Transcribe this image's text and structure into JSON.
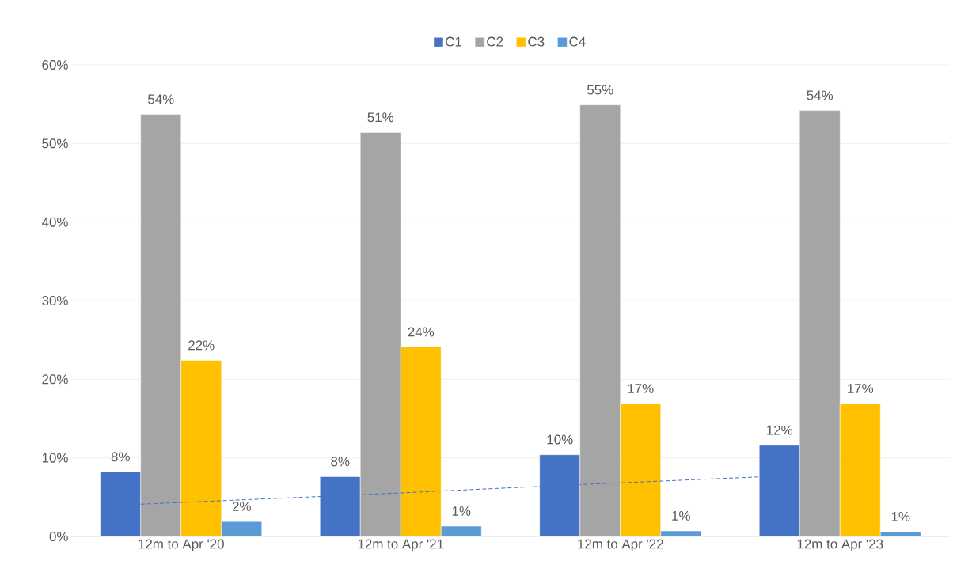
{
  "chart_data": {
    "type": "bar",
    "categories": [
      "12m to Apr '20",
      "12m to Apr '21",
      "12m to Apr '22",
      "12m to Apr '23"
    ],
    "series": [
      {
        "name": "C1",
        "color": "#4472c4",
        "values": [
          8.2,
          7.6,
          10.4,
          11.6
        ],
        "value_labels": [
          "8%",
          "8%",
          "10%",
          "12%"
        ]
      },
      {
        "name": "C2",
        "color": "#a5a5a5",
        "values": [
          53.7,
          51.4,
          54.9,
          54.2
        ],
        "value_labels": [
          "54%",
          "51%",
          "55%",
          "54%"
        ]
      },
      {
        "name": "C3",
        "color": "#ffc000",
        "values": [
          22.4,
          24.1,
          16.9,
          16.9
        ],
        "value_labels": [
          "22%",
          "24%",
          "17%",
          "17%"
        ]
      },
      {
        "name": "C4",
        "color": "#5b9bd5",
        "values": [
          1.9,
          1.3,
          0.7,
          0.6
        ],
        "value_labels": [
          "2%",
          "1%",
          "1%",
          "1%"
        ]
      },
      {
        "type": "line",
        "color": "#4472c4",
        "line_style": "dashed",
        "marker": "none",
        "values": [
          4.1,
          5.3,
          6.6,
          7.8
        ]
      }
    ],
    "ylim": [
      0,
      60
    ],
    "yticks": [
      {
        "value": 0,
        "label": "0%"
      },
      {
        "value": 10,
        "label": "10%"
      },
      {
        "value": 20,
        "label": "20%"
      },
      {
        "value": 30,
        "label": "30%"
      },
      {
        "value": 40,
        "label": "40%"
      },
      {
        "value": 50,
        "label": "50%"
      },
      {
        "value": 60,
        "label": "60%"
      }
    ],
    "grid": "y",
    "legend": "top"
  }
}
